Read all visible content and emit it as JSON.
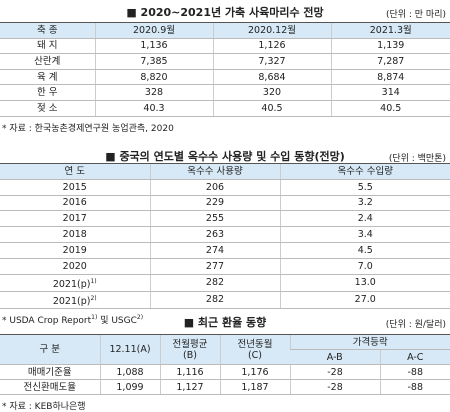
{
  "tables": [
    {
      "title": "■ 2020~2021년 가축 사육마리수 전망",
      "unit": "(단위 : 만 마리)",
      "header": [
        "축 종",
        "2020.9월",
        "2020.12월",
        "2021.3월"
      ],
      "rows": [
        [
          "돼 지",
          "1,136",
          "1,126",
          "1,139"
        ],
        [
          "산란계",
          "7,385",
          "7,327",
          "7,287"
        ],
        [
          "육 계",
          "8,820",
          "8,684",
          "8,874"
        ],
        [
          "한 우",
          "328",
          "320",
          "314"
        ],
        [
          "젖 소",
          "40.3",
          "40.5",
          "40.5"
        ]
      ],
      "note": [
        "* 자료 : 한국농촌경제연구원 농업관측, 2020"
      ]
    },
    {
      "title": "■ 중국의 연도별 옥수수 사용량 및 수입 동향(전망)",
      "unit": "(단위 : 백만톤)",
      "header": [
        "연 도",
        "옥수수 사용량",
        "옥수수 수입량"
      ],
      "rows": [
        [
          "2015",
          "206",
          "5.5"
        ],
        [
          "2016",
          "229",
          "3.2"
        ],
        [
          "2017",
          "255",
          "2.4"
        ],
        [
          "2018",
          "263",
          "3.4"
        ],
        [
          "2019",
          "274",
          "4.5"
        ],
        [
          "2020",
          "277",
          "7.0"
        ],
        [
          [
            "2021(p)",
            "1)"
          ],
          "282",
          "13.0"
        ],
        [
          [
            "2021(p)",
            "2)"
          ],
          "282",
          "27.0"
        ]
      ],
      "note": [
        "* USDA Crop Report",
        "1)",
        " 및 USGC",
        "2)"
      ]
    },
    {
      "title": "■ 최근 환율 동향",
      "unit": "(단위 : 원/달러)",
      "header": [
        "구 분",
        "12.11(A)",
        [
          "전월평균",
          "(B)"
        ],
        [
          "전년동월",
          "(C)"
        ],
        "가격등락"
      ],
      "subheader": [
        "A-B",
        "A-C"
      ],
      "rows": [
        [
          "매매기준율",
          "1,088",
          "1,116",
          "1,176",
          "-28",
          "-88"
        ],
        [
          "전신환매도율",
          "1,099",
          "1,127",
          "1,187",
          "-28",
          "-88"
        ]
      ],
      "note": [
        "* 자료 : KEB하나은행"
      ]
    }
  ]
}
